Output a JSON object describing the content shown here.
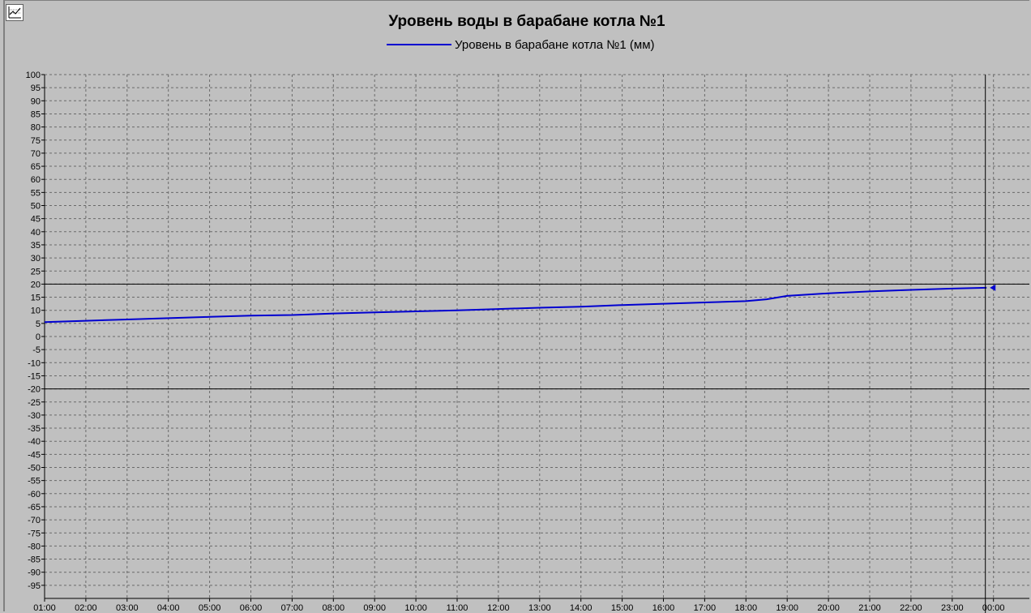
{
  "header": {
    "title": "Уровень воды в барабане котла №1",
    "legend_label": "Уровень в барабане котла №1 (мм)"
  },
  "colors": {
    "background": "#c0c0c0",
    "series": "#0000d0",
    "grid": "#6a6a6a",
    "limit_lines": "#000000"
  },
  "icons": {
    "corner": "chart-settings-icon"
  },
  "chart_data": {
    "type": "line",
    "title": "Уровень воды в барабане котла №1",
    "xlabel": "",
    "ylabel": "",
    "ylim": [
      -100,
      100
    ],
    "xlim_hours": [
      1,
      24.4
    ],
    "yticks": [
      100,
      95,
      90,
      85,
      80,
      75,
      70,
      65,
      60,
      55,
      50,
      45,
      40,
      35,
      30,
      25,
      20,
      15,
      10,
      5,
      0,
      -5,
      -10,
      -15,
      -20,
      -25,
      -30,
      -35,
      -40,
      -45,
      -50,
      -55,
      -60,
      -65,
      -70,
      -75,
      -80,
      -85,
      -90,
      -95
    ],
    "xticks": [
      "01:00",
      "02:00",
      "03:00",
      "04:00",
      "05:00",
      "06:00",
      "07:00",
      "08:00",
      "09:00",
      "10:00",
      "11:00",
      "12:00",
      "13:00",
      "14:00",
      "15:00",
      "16:00",
      "17:00",
      "18:00",
      "19:00",
      "20:00",
      "21:00",
      "22:00",
      "23:00",
      "00:00"
    ],
    "grid": true,
    "legend_position": "top-center",
    "limit_lines": [
      20,
      -20
    ],
    "cursor_time": "00:00",
    "series": [
      {
        "name": "Уровень в барабане котла №1 (мм)",
        "x": [
          "01:00",
          "02:00",
          "03:00",
          "04:00",
          "05:00",
          "06:00",
          "07:00",
          "08:00",
          "09:00",
          "10:00",
          "11:00",
          "12:00",
          "13:00",
          "14:00",
          "15:00",
          "16:00",
          "17:00",
          "18:00",
          "18:30",
          "19:00",
          "20:00",
          "21:00",
          "22:00",
          "23:00",
          "23:50"
        ],
        "values": [
          5.5,
          6,
          6.5,
          7,
          7.5,
          8,
          8.2,
          8.8,
          9.2,
          9.6,
          10,
          10.5,
          11,
          11.4,
          12,
          12.5,
          13,
          13.5,
          14.2,
          15.5,
          16.5,
          17.2,
          17.8,
          18.3,
          18.6
        ]
      }
    ]
  }
}
